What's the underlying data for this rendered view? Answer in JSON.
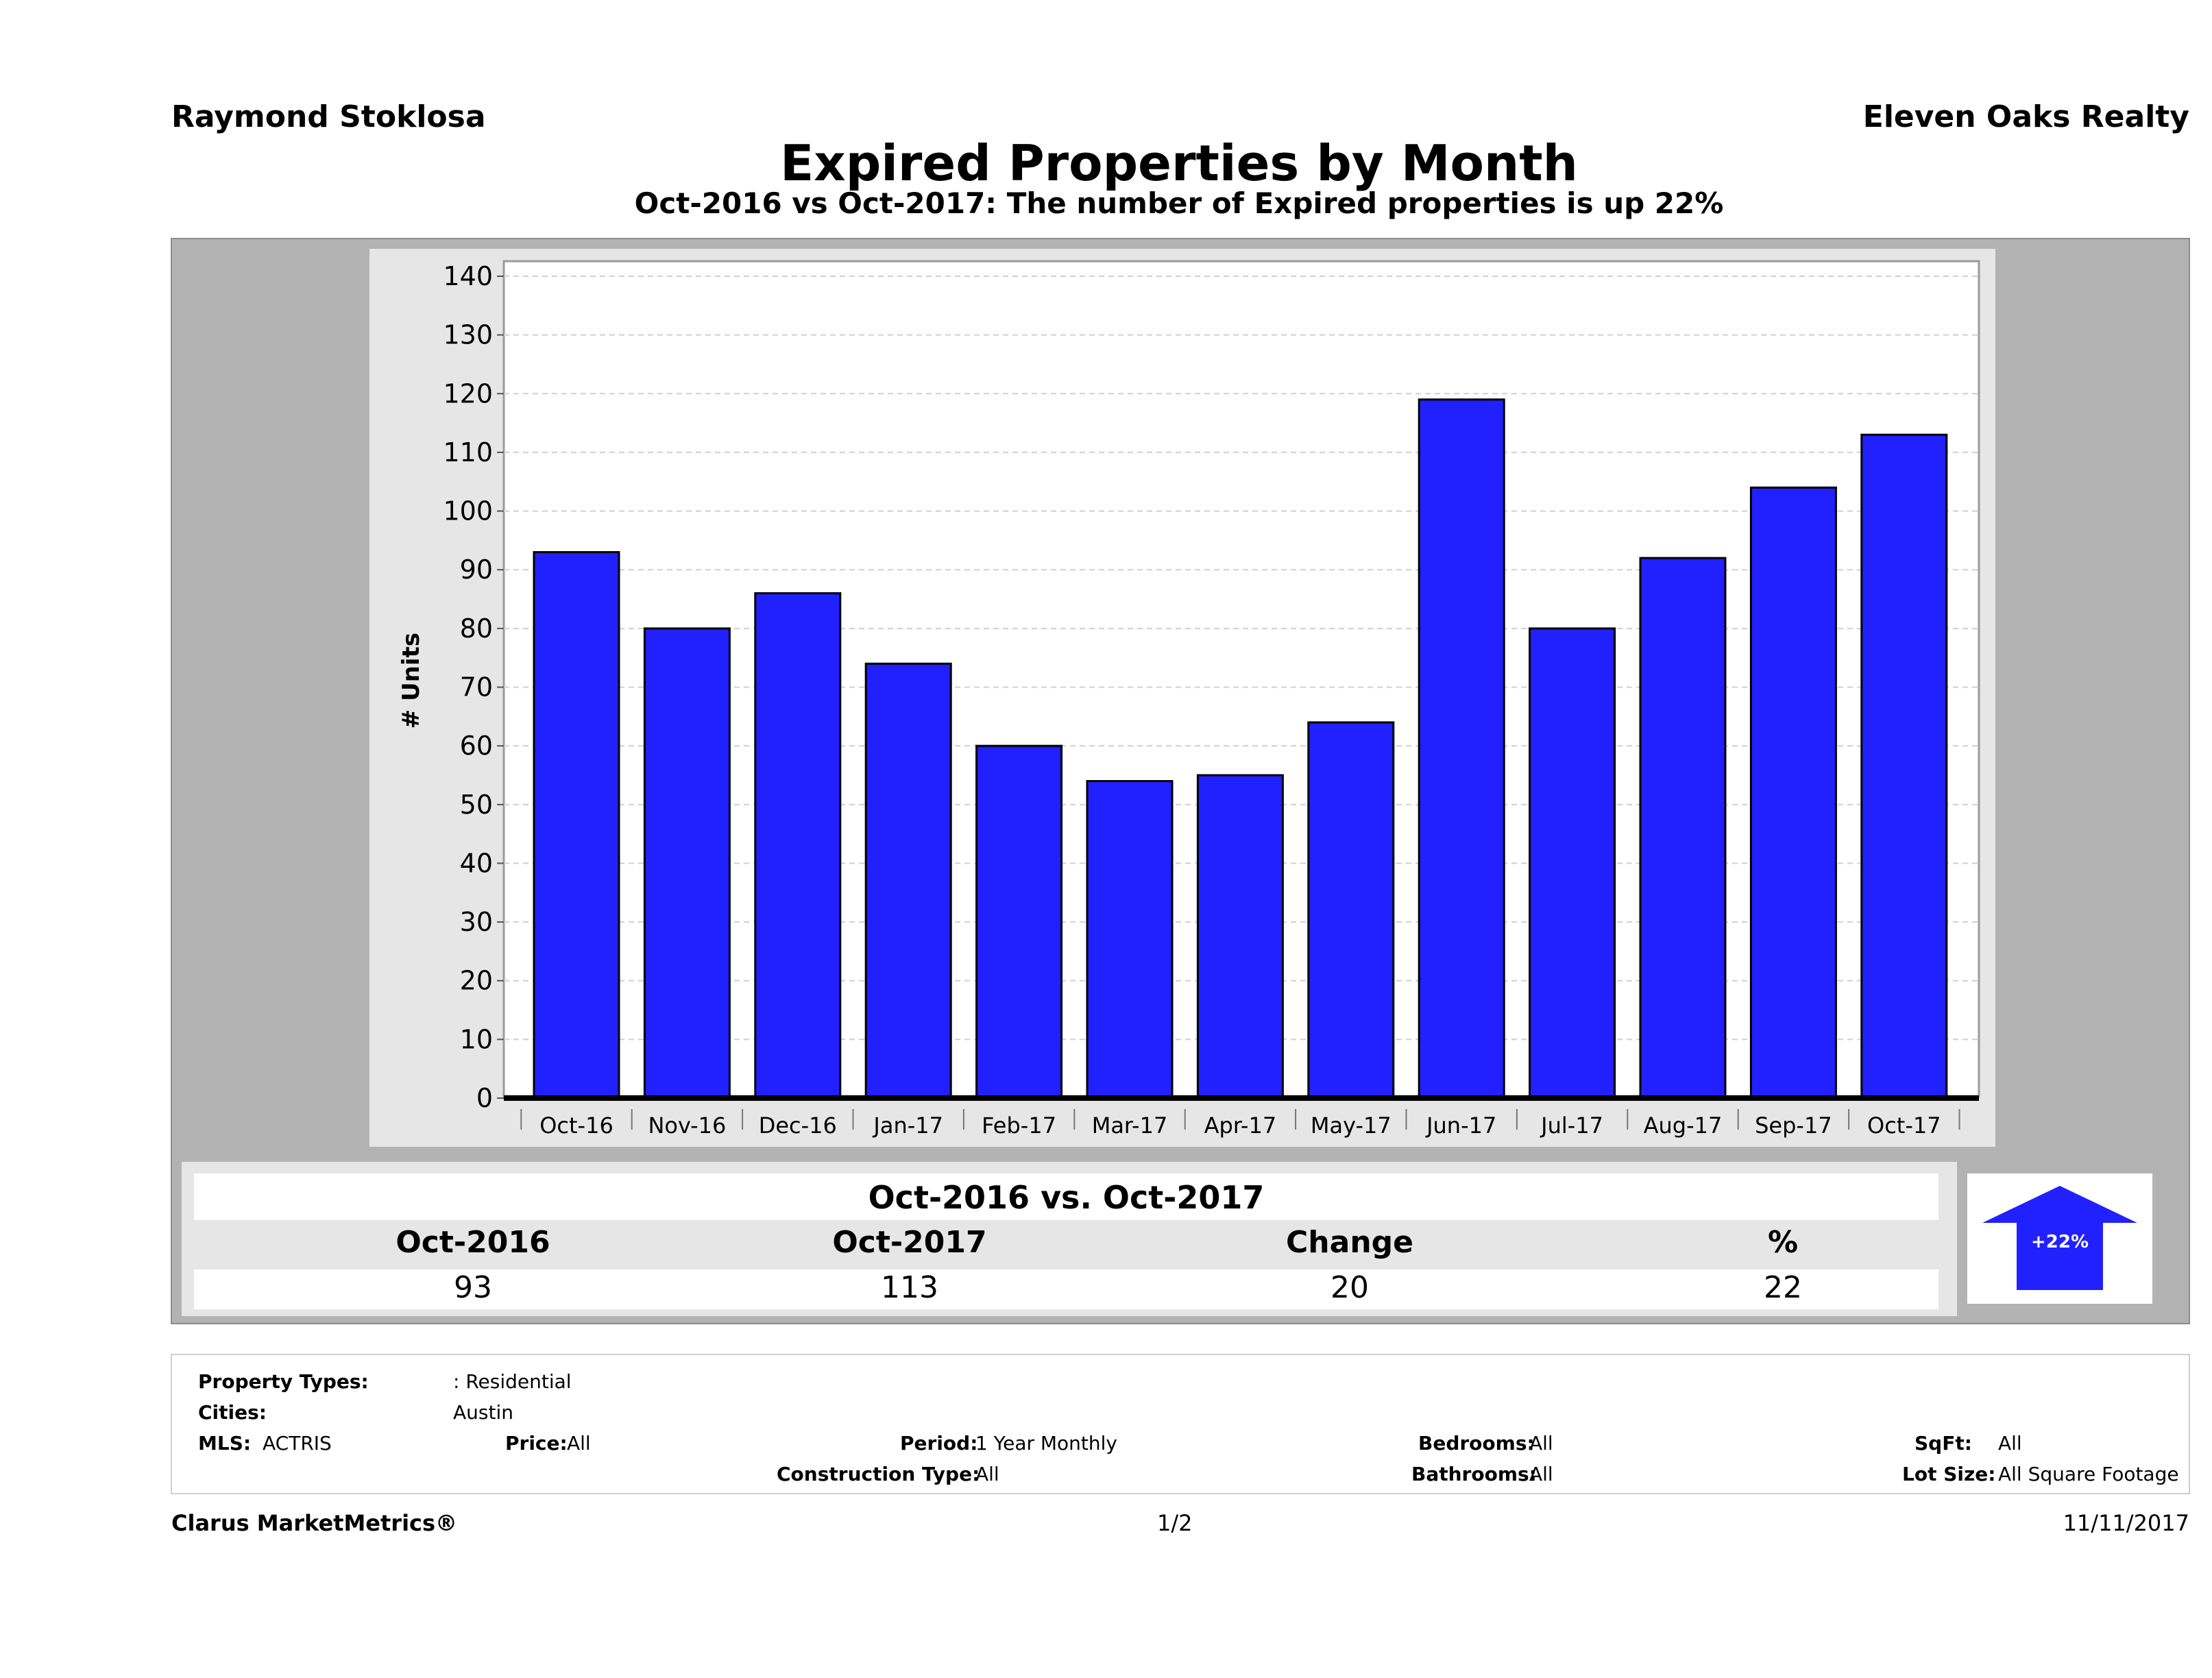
{
  "header": {
    "agent": "Raymond Stoklosa",
    "company": "Eleven Oaks Realty",
    "title": "Expired Properties by Month",
    "subtitle": "Oct-2016 vs Oct-2017: The number of Expired  properties is up 22%"
  },
  "chart_data": {
    "type": "bar",
    "categories": [
      "Oct-16",
      "Nov-16",
      "Dec-16",
      "Jan-17",
      "Feb-17",
      "Mar-17",
      "Apr-17",
      "May-17",
      "Jun-17",
      "Jul-17",
      "Aug-17",
      "Sep-17",
      "Oct-17"
    ],
    "values": [
      93,
      80,
      86,
      74,
      60,
      54,
      55,
      64,
      119,
      80,
      92,
      104,
      113
    ],
    "ylabel": "# Units",
    "ylim": [
      0,
      140
    ],
    "yticks": [
      "0",
      "10",
      "20",
      "30",
      "40",
      "50",
      "60",
      "70",
      "80",
      "90",
      "100",
      "110",
      "120",
      "130",
      "140"
    ],
    "grid": true,
    "bar_color": "#2121ff"
  },
  "summary": {
    "heading": "Oct-2016 vs. Oct-2017",
    "columns": [
      "Oct-2016",
      "Oct-2017",
      "Change",
      "%"
    ],
    "values": [
      "93",
      "113",
      "20",
      "22"
    ],
    "badge": "+22%",
    "badge_color": "#2121ff"
  },
  "criteria": {
    "property_types_label": "Property Types:",
    "property_types_value": ": Residential",
    "cities_label": "Cities:",
    "cities_value": "Austin",
    "mls_label": "MLS:",
    "mls_value": "ACTRIS",
    "price_label": "Price:",
    "price_value": "All",
    "period_label": "Period:",
    "period_value": "1 Year Monthly",
    "construction_label": "Construction Type:",
    "construction_value": "All",
    "bedrooms_label": "Bedrooms:",
    "bedrooms_value": "All",
    "bathrooms_label": "Bathrooms:",
    "bathrooms_value": "All",
    "sqft_label": "SqFt:",
    "sqft_value": "All",
    "lotsize_label": "Lot Size:",
    "lotsize_value": "All Square Footage"
  },
  "footer": {
    "brand": "Clarus MarketMetrics®",
    "page": "1/2",
    "date": "11/11/2017"
  }
}
